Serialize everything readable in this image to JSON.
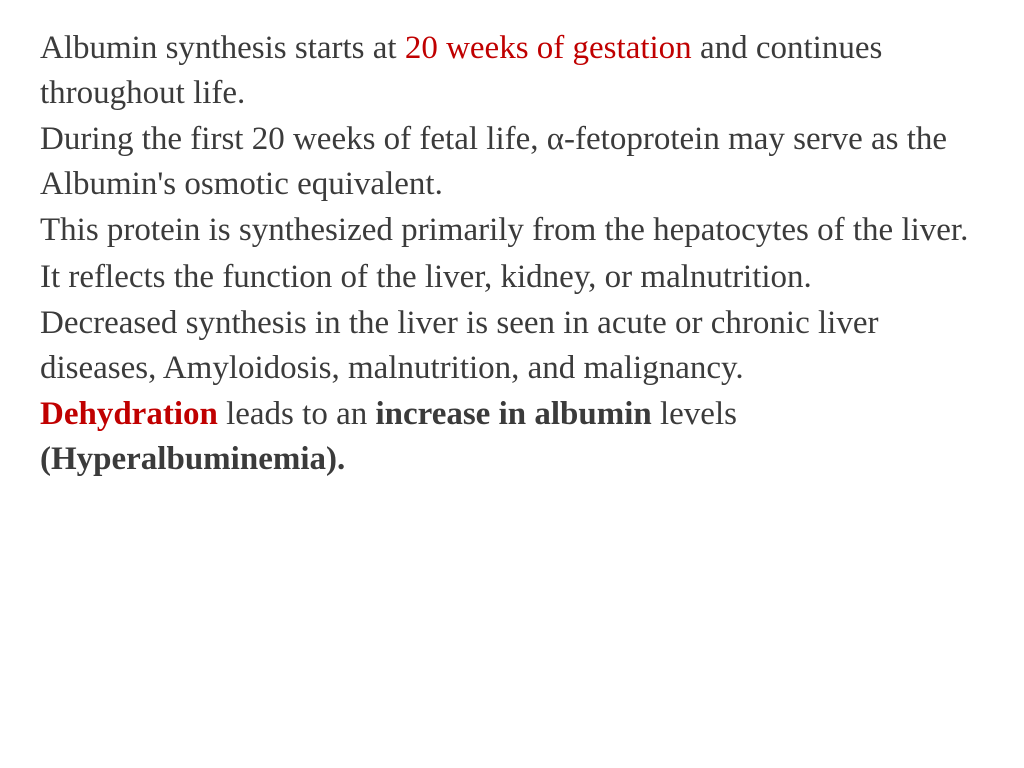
{
  "colors": {
    "text_default": "#3b3b3b",
    "text_emphasis_red": "#c00000",
    "background": "#ffffff"
  },
  "typography": {
    "font_family": "Times New Roman",
    "font_size_pt": 25,
    "line_height": 1.35,
    "bold_segments": true
  },
  "paragraphs": [
    {
      "segments": [
        {
          "text": "Albumin synthesis starts at ",
          "red": false,
          "bold": false
        },
        {
          "text": "20 weeks of gestation",
          "red": true,
          "bold": false
        },
        {
          "text": " and continues throughout life.",
          "red": false,
          "bold": false
        }
      ]
    },
    {
      "segments": [
        {
          "text": "During the first 20 weeks of fetal life, α-fetoprotein may serve as the Albumin's osmotic equivalent.",
          "red": false,
          "bold": false
        }
      ]
    },
    {
      "segments": [
        {
          "text": "This protein is synthesized primarily from the hepatocytes of the liver.",
          "red": false,
          "bold": false
        }
      ]
    },
    {
      "segments": [
        {
          "text": "It reflects the function of the liver, kidney, or malnutrition.",
          "red": false,
          "bold": false
        }
      ]
    },
    {
      "segments": [
        {
          "text": "Decreased synthesis in the liver is seen in acute or chronic liver diseases, Amyloidosis, malnutrition, and malignancy.",
          "red": false,
          "bold": false
        }
      ]
    },
    {
      "segments": [
        {
          "text": "Dehydration",
          "red": true,
          "bold": true
        },
        {
          "text": " leads to an ",
          "red": false,
          "bold": false
        },
        {
          "text": "increase in albumin",
          "red": false,
          "bold": true
        },
        {
          "text": " levels ",
          "red": false,
          "bold": false
        },
        {
          "text": "(Hyperalbuminemia).",
          "red": false,
          "bold": true
        }
      ]
    }
  ]
}
